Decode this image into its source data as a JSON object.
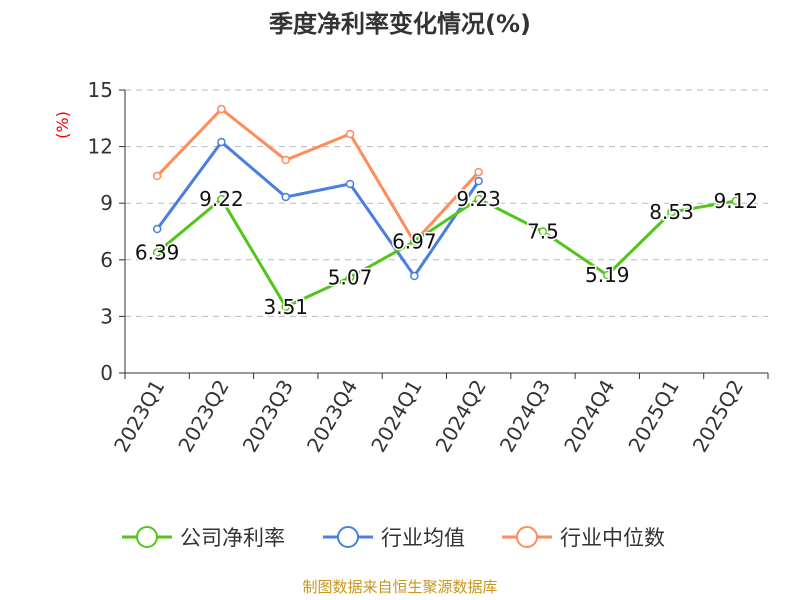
{
  "chart_data": {
    "type": "line",
    "title": "季度净利率变化情况(%)",
    "ylabel": "(%)",
    "ylim": [
      0,
      15
    ],
    "yticks": [
      0,
      3,
      6,
      9,
      12,
      15
    ],
    "grid": true,
    "legend_position": "bottom",
    "categories": [
      "2023Q1",
      "2023Q2",
      "2023Q3",
      "2023Q4",
      "2024Q1",
      "2024Q2",
      "2024Q3",
      "2024Q4",
      "2025Q1",
      "2025Q2"
    ],
    "series": [
      {
        "name": "公司净利率",
        "color": "#52c41a",
        "values": [
          6.39,
          9.22,
          3.51,
          5.07,
          6.97,
          9.23,
          7.5,
          5.19,
          8.53,
          9.12
        ],
        "labels": [
          "6.39",
          "9.22",
          "3.51",
          "5.07",
          "6.97",
          "9.23",
          "7.5",
          "5.19",
          "8.53",
          "9.12"
        ]
      },
      {
        "name": "行业均值",
        "color": "#4a7fe0",
        "values": [
          7.63,
          12.24,
          9.33,
          10.02,
          5.14,
          10.17,
          null,
          null,
          null,
          null
        ]
      },
      {
        "name": "行业中位数",
        "color": "#ff8c5a",
        "values": [
          10.44,
          13.99,
          11.29,
          12.67,
          6.94,
          10.65,
          null,
          null,
          null,
          null
        ]
      }
    ],
    "source": "制图数据来自恒生聚源数据库"
  }
}
